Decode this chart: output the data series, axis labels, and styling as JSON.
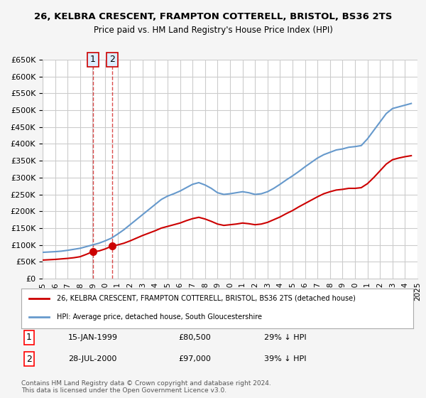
{
  "title": "26, KELBRA CRESCENT, FRAMPTON COTTERELL, BRISTOL, BS36 2TS",
  "subtitle": "Price paid vs. HM Land Registry's House Price Index (HPI)",
  "legend_line1": "26, KELBRA CRESCENT, FRAMPTON COTTERELL, BRISTOL, BS36 2TS (detached house)",
  "legend_line2": "HPI: Average price, detached house, South Gloucestershire",
  "footer": "Contains HM Land Registry data © Crown copyright and database right 2024.\nThis data is licensed under the Open Government Licence v3.0.",
  "sale1_label": "1",
  "sale1_date": "15-JAN-1999",
  "sale1_price": "£80,500",
  "sale1_hpi": "29% ↓ HPI",
  "sale1_year": 1999.04,
  "sale1_value": 80500,
  "sale2_label": "2",
  "sale2_date": "28-JUL-2000",
  "sale2_price": "£97,000",
  "sale2_hpi": "39% ↓ HPI",
  "sale2_year": 2000.57,
  "sale2_value": 97000,
  "red_color": "#cc0000",
  "blue_color": "#6699cc",
  "grid_color": "#cccccc",
  "bg_color": "#f5f5f5",
  "plot_bg": "#ffffff",
  "ylim": [
    0,
    650000
  ],
  "yticks": [
    0,
    50000,
    100000,
    150000,
    200000,
    250000,
    300000,
    350000,
    400000,
    450000,
    500000,
    550000,
    600000,
    650000
  ],
  "hpi_years": [
    1995,
    1995.5,
    1996,
    1996.5,
    1997,
    1997.5,
    1998,
    1998.5,
    1999,
    1999.5,
    2000,
    2000.5,
    2001,
    2001.5,
    2002,
    2002.5,
    2003,
    2003.5,
    2004,
    2004.5,
    2005,
    2005.5,
    2006,
    2006.5,
    2007,
    2007.5,
    2008,
    2008.5,
    2009,
    2009.5,
    2010,
    2010.5,
    2011,
    2011.5,
    2012,
    2012.5,
    2013,
    2013.5,
    2014,
    2014.5,
    2015,
    2015.5,
    2016,
    2016.5,
    2017,
    2017.5,
    2018,
    2018.5,
    2019,
    2019.5,
    2020,
    2020.5,
    2021,
    2021.5,
    2022,
    2022.5,
    2023,
    2023.5,
    2024,
    2024.5
  ],
  "hpi_values": [
    78000,
    79000,
    80000,
    81500,
    84000,
    87000,
    90000,
    95000,
    100000,
    105000,
    112000,
    120000,
    132000,
    145000,
    160000,
    175000,
    190000,
    205000,
    220000,
    235000,
    245000,
    252000,
    260000,
    270000,
    280000,
    285000,
    278000,
    268000,
    255000,
    250000,
    252000,
    255000,
    258000,
    255000,
    250000,
    252000,
    258000,
    268000,
    280000,
    293000,
    305000,
    318000,
    332000,
    345000,
    358000,
    368000,
    375000,
    382000,
    385000,
    390000,
    392000,
    395000,
    415000,
    440000,
    465000,
    490000,
    505000,
    510000,
    515000,
    520000
  ],
  "red_years": [
    1995,
    1995.5,
    1996,
    1996.5,
    1997,
    1997.5,
    1998,
    1998.5,
    1999.04,
    1999.5,
    2000,
    2000.57,
    2001,
    2001.5,
    2002,
    2002.5,
    2003,
    2003.5,
    2004,
    2004.5,
    2005,
    2005.5,
    2006,
    2006.5,
    2007,
    2007.5,
    2008,
    2008.5,
    2009,
    2009.5,
    2010,
    2010.5,
    2011,
    2011.5,
    2012,
    2012.5,
    2013,
    2013.5,
    2014,
    2014.5,
    2015,
    2015.5,
    2016,
    2016.5,
    2017,
    2017.5,
    2018,
    2018.5,
    2019,
    2019.5,
    2020,
    2020.5,
    2021,
    2021.5,
    2022,
    2022.5,
    2023,
    2023.5,
    2024,
    2024.5
  ],
  "red_values": [
    55000,
    56000,
    57000,
    58500,
    60000,
    62000,
    65000,
    72000,
    80500,
    82000,
    88000,
    97000,
    100000,
    105000,
    112000,
    120000,
    128000,
    135000,
    142000,
    150000,
    155000,
    160000,
    165000,
    172000,
    178000,
    182000,
    177000,
    170000,
    162000,
    158000,
    160000,
    162000,
    165000,
    163000,
    160000,
    162000,
    167000,
    175000,
    183000,
    193000,
    202000,
    213000,
    223000,
    233000,
    243000,
    252000,
    258000,
    263000,
    265000,
    268000,
    268000,
    270000,
    282000,
    300000,
    320000,
    340000,
    353000,
    358000,
    362000,
    365000
  ],
  "xtick_years": [
    1995,
    1996,
    1997,
    1998,
    1999,
    2000,
    2001,
    2002,
    2003,
    2004,
    2005,
    2006,
    2007,
    2008,
    2009,
    2010,
    2011,
    2012,
    2013,
    2014,
    2015,
    2016,
    2017,
    2018,
    2019,
    2020,
    2021,
    2022,
    2023,
    2024,
    2025
  ]
}
